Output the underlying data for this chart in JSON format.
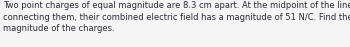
{
  "text": "Two point charges of equal magnitude are 8.3 cm apart. At the midpoint of the line\nconnecting them, their combined electric field has a magnitude of 51 N/C. Find the\nmagnitude of the charges.",
  "background_color": "#f5f5f5",
  "text_color": "#2b2b3b",
  "font_size": 6.0,
  "fig_width": 3.5,
  "fig_height": 0.47,
  "dpi": 100
}
